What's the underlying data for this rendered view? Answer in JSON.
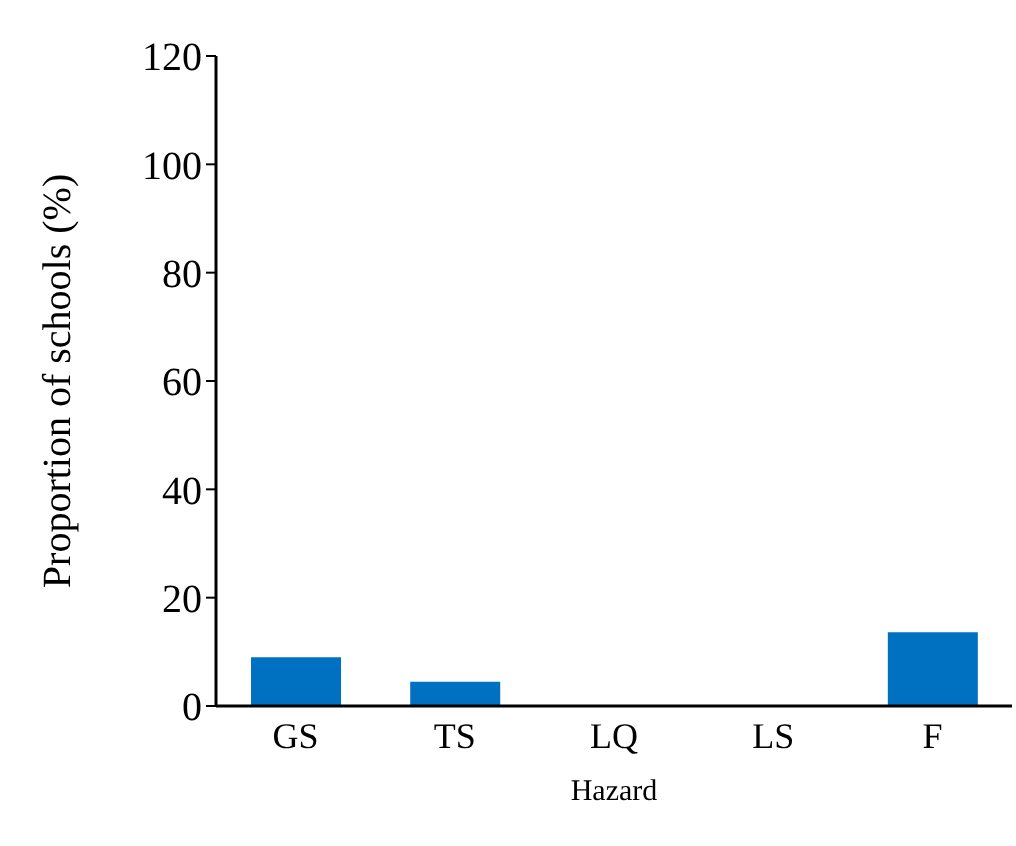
{
  "chart_data": {
    "type": "bar",
    "xlabel": "Hazard",
    "ylabel": "Proportion of schools (%)",
    "categories": [
      "GS",
      "TS",
      "LQ",
      "LS",
      "F"
    ],
    "values": [
      9,
      4.5,
      0,
      0,
      13.6
    ],
    "color": "#0070c0",
    "ylim": [
      0,
      120
    ],
    "yticks": [
      0,
      20,
      40,
      60,
      80,
      100,
      120
    ],
    "grid": false,
    "legend": false
  }
}
